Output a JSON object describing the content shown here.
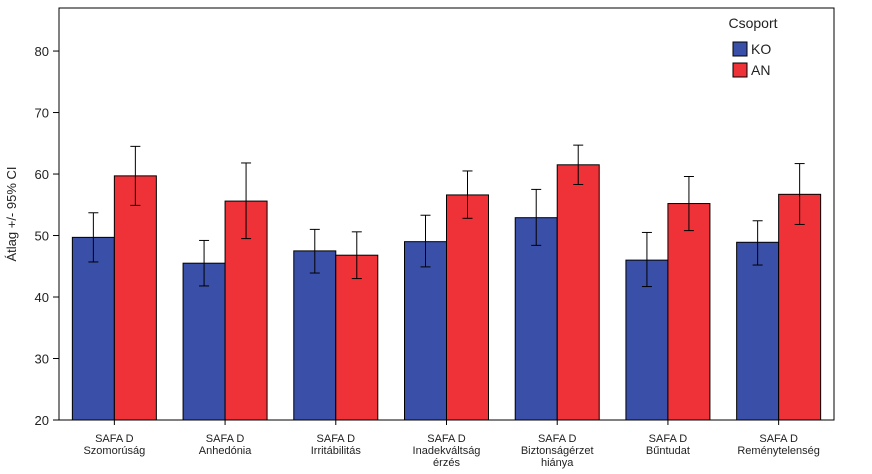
{
  "chart_data": {
    "type": "bar",
    "ylabel": "Átlag +/- 95% CI",
    "ylim": [
      20,
      87
    ],
    "yticks": [
      20,
      30,
      40,
      50,
      60,
      70,
      80
    ],
    "grid": false,
    "legend": {
      "title": "Csoport",
      "position": "top-right"
    },
    "categories": [
      [
        "SAFA D",
        "Szomorúság"
      ],
      [
        "SAFA D",
        "Anhedónia"
      ],
      [
        "SAFA D",
        "Irritábilitás"
      ],
      [
        "SAFA D",
        "Inadekváltság",
        "érzés"
      ],
      [
        "SAFA D",
        "Biztonságérzet",
        "hiánya"
      ],
      [
        "SAFA D",
        "Bűntudat"
      ],
      [
        "SAFA D",
        "Reménytelenség"
      ]
    ],
    "series": [
      {
        "name": "KO",
        "color": "#3a4fa8",
        "values": [
          49.7,
          45.5,
          47.5,
          49.0,
          52.9,
          46.0,
          48.9
        ],
        "ci_low": [
          45.7,
          41.8,
          43.9,
          44.9,
          48.4,
          41.7,
          45.2
        ],
        "ci_high": [
          53.7,
          49.2,
          51.0,
          53.3,
          57.5,
          50.5,
          52.4
        ]
      },
      {
        "name": "AN",
        "color": "#ee3237",
        "values": [
          59.7,
          55.6,
          46.8,
          56.6,
          61.5,
          55.2,
          56.7
        ],
        "ci_low": [
          54.9,
          49.5,
          43.0,
          52.8,
          58.3,
          50.8,
          51.8
        ],
        "ci_high": [
          64.5,
          61.8,
          50.6,
          60.5,
          64.7,
          59.6,
          61.7
        ]
      }
    ]
  }
}
